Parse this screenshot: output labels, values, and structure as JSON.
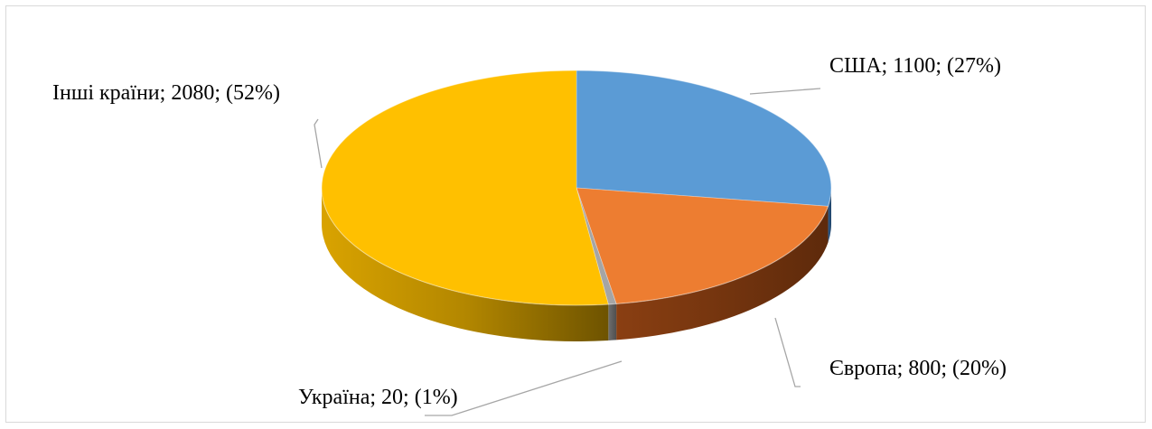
{
  "chart_data": {
    "type": "pie",
    "title": "",
    "slices": [
      {
        "name": "США",
        "value": 1100,
        "percent": 27,
        "label": "США; 1100; (27%)",
        "color": "#5b9bd5"
      },
      {
        "name": "Європа",
        "value": 800,
        "percent": 20,
        "label": "Європа; 800; (20%)",
        "color": "#ed7d31"
      },
      {
        "name": "Україна",
        "value": 20,
        "percent": 1,
        "label": "Україна; 20; (1%)",
        "color": "#a5a5a5"
      },
      {
        "name": "Інші країни",
        "value": 2080,
        "percent": 52,
        "label": "Інші країни; 2080; (52%)",
        "color": "#ffc000"
      }
    ],
    "legend": "none",
    "style": "3d"
  }
}
